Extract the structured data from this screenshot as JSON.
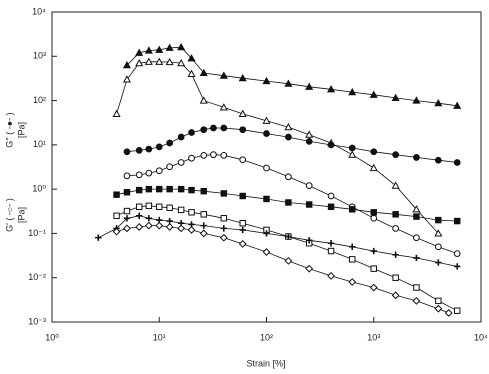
{
  "chart_data": {
    "type": "line",
    "log_x": true,
    "log_y": true,
    "xlabel": "Strain [%]",
    "ylabel_parts": [
      {
        "text": "G' ( -○- )",
        "unit": "[Pa]"
      },
      {
        "text": "G'' ( -●- )",
        "unit": "[Pa]"
      }
    ],
    "xlim": [
      1,
      10000
    ],
    "xticks": [
      {
        "value": 1,
        "label": "10⁰"
      },
      {
        "value": 10,
        "label": "10¹"
      },
      {
        "value": 100,
        "label": "10²"
      },
      {
        "value": 1000,
        "label": "10³"
      },
      {
        "value": 10000,
        "label": "10⁴"
      }
    ],
    "ylim": [
      0.001,
      10000
    ],
    "yticks": [
      {
        "value": 0.001,
        "label": "10⁻³"
      },
      {
        "value": 0.01,
        "label": "10⁻²"
      },
      {
        "value": 0.1,
        "label": "10⁻¹"
      },
      {
        "value": 1,
        "label": "10⁰"
      },
      {
        "value": 10,
        "label": "10¹"
      },
      {
        "value": 100,
        "label": "10²"
      },
      {
        "value": 1000,
        "label": "10³"
      },
      {
        "value": 10000,
        "label": "10⁴"
      }
    ],
    "series": [
      {
        "marker": "triangle-filled",
        "color": "#111",
        "x": [
          5,
          6.5,
          8,
          10,
          12.5,
          16,
          20,
          26,
          40,
          60,
          100,
          160,
          250,
          400,
          630,
          1000,
          1600,
          2500,
          4000,
          6000
        ],
        "values": [
          630,
          1200,
          1350,
          1400,
          1550,
          1600,
          900,
          420,
          365,
          320,
          275,
          240,
          205,
          180,
          155,
          135,
          115,
          100,
          87,
          76
        ]
      },
      {
        "marker": "triangle-open",
        "color": "#111",
        "x": [
          4,
          5,
          6.5,
          8,
          10,
          12.5,
          16,
          20,
          26,
          40,
          60,
          100,
          160,
          250,
          400,
          630,
          1000,
          1600,
          2500,
          4000
        ],
        "values": [
          50,
          300,
          700,
          750,
          750,
          740,
          700,
          400,
          100,
          70,
          50,
          35,
          25,
          17,
          11,
          6,
          3,
          1.2,
          0.35,
          0.1
        ]
      },
      {
        "marker": "circle-filled",
        "color": "#111",
        "x": [
          5,
          6.5,
          8,
          10,
          12.5,
          16,
          20,
          26,
          32,
          40,
          60,
          100,
          160,
          250,
          400,
          630,
          1000,
          1600,
          2500,
          4000,
          6000
        ],
        "values": [
          7,
          7.5,
          8,
          9,
          11,
          15,
          19,
          22,
          24,
          24,
          22,
          18,
          15,
          12,
          10,
          8.5,
          7,
          6,
          5.2,
          4.5,
          4
        ]
      },
      {
        "marker": "circle-open",
        "color": "#111",
        "x": [
          5,
          6.5,
          8,
          10,
          12.5,
          16,
          20,
          26,
          32,
          40,
          60,
          100,
          160,
          250,
          400,
          630,
          1000,
          1600,
          2500,
          4000,
          6000
        ],
        "values": [
          2,
          2.1,
          2.3,
          2.6,
          3.2,
          4,
          5,
          5.8,
          6,
          5.8,
          4.6,
          3,
          1.9,
          1.2,
          0.7,
          0.4,
          0.22,
          0.13,
          0.08,
          0.05,
          0.035
        ]
      },
      {
        "marker": "square-filled",
        "color": "#111",
        "x": [
          4,
          5,
          6.5,
          8,
          10,
          12.5,
          16,
          20,
          26,
          40,
          60,
          100,
          160,
          250,
          400,
          630,
          1000,
          1600,
          2500,
          4000,
          6000
        ],
        "values": [
          0.75,
          0.85,
          0.95,
          1,
          1,
          1,
          1,
          0.95,
          0.9,
          0.8,
          0.7,
          0.6,
          0.5,
          0.45,
          0.4,
          0.35,
          0.3,
          0.27,
          0.24,
          0.2,
          0.19
        ]
      },
      {
        "marker": "square-open",
        "color": "#111",
        "x": [
          4,
          5,
          6.5,
          8,
          10,
          12.5,
          16,
          20,
          26,
          40,
          60,
          100,
          160,
          250,
          400,
          630,
          1000,
          1600,
          2500,
          4000,
          6000
        ],
        "values": [
          0.25,
          0.32,
          0.4,
          0.42,
          0.4,
          0.38,
          0.34,
          0.3,
          0.27,
          0.22,
          0.17,
          0.12,
          0.085,
          0.06,
          0.04,
          0.026,
          0.016,
          0.01,
          0.006,
          0.003,
          0.0018
        ]
      },
      {
        "marker": "cross",
        "color": "#111",
        "x": [
          2.7,
          4,
          5,
          6.5,
          8,
          10,
          12.5,
          16,
          20,
          26,
          40,
          60,
          100,
          160,
          250,
          400,
          630,
          1000,
          1600,
          2500,
          4000,
          6000
        ],
        "values": [
          0.08,
          0.13,
          0.22,
          0.25,
          0.22,
          0.2,
          0.19,
          0.17,
          0.16,
          0.15,
          0.13,
          0.12,
          0.1,
          0.085,
          0.07,
          0.06,
          0.05,
          0.04,
          0.033,
          0.028,
          0.022,
          0.018
        ]
      },
      {
        "marker": "diamond-open",
        "color": "#111",
        "x": [
          4,
          5,
          6.5,
          8,
          10,
          12.5,
          16,
          20,
          26,
          40,
          60,
          100,
          160,
          250,
          400,
          630,
          1000,
          1600,
          2500,
          4000,
          5000
        ],
        "values": [
          0.11,
          0.13,
          0.14,
          0.15,
          0.15,
          0.14,
          0.13,
          0.12,
          0.1,
          0.08,
          0.058,
          0.038,
          0.024,
          0.016,
          0.011,
          0.008,
          0.006,
          0.004,
          0.003,
          0.002,
          0.0016
        ]
      }
    ]
  }
}
